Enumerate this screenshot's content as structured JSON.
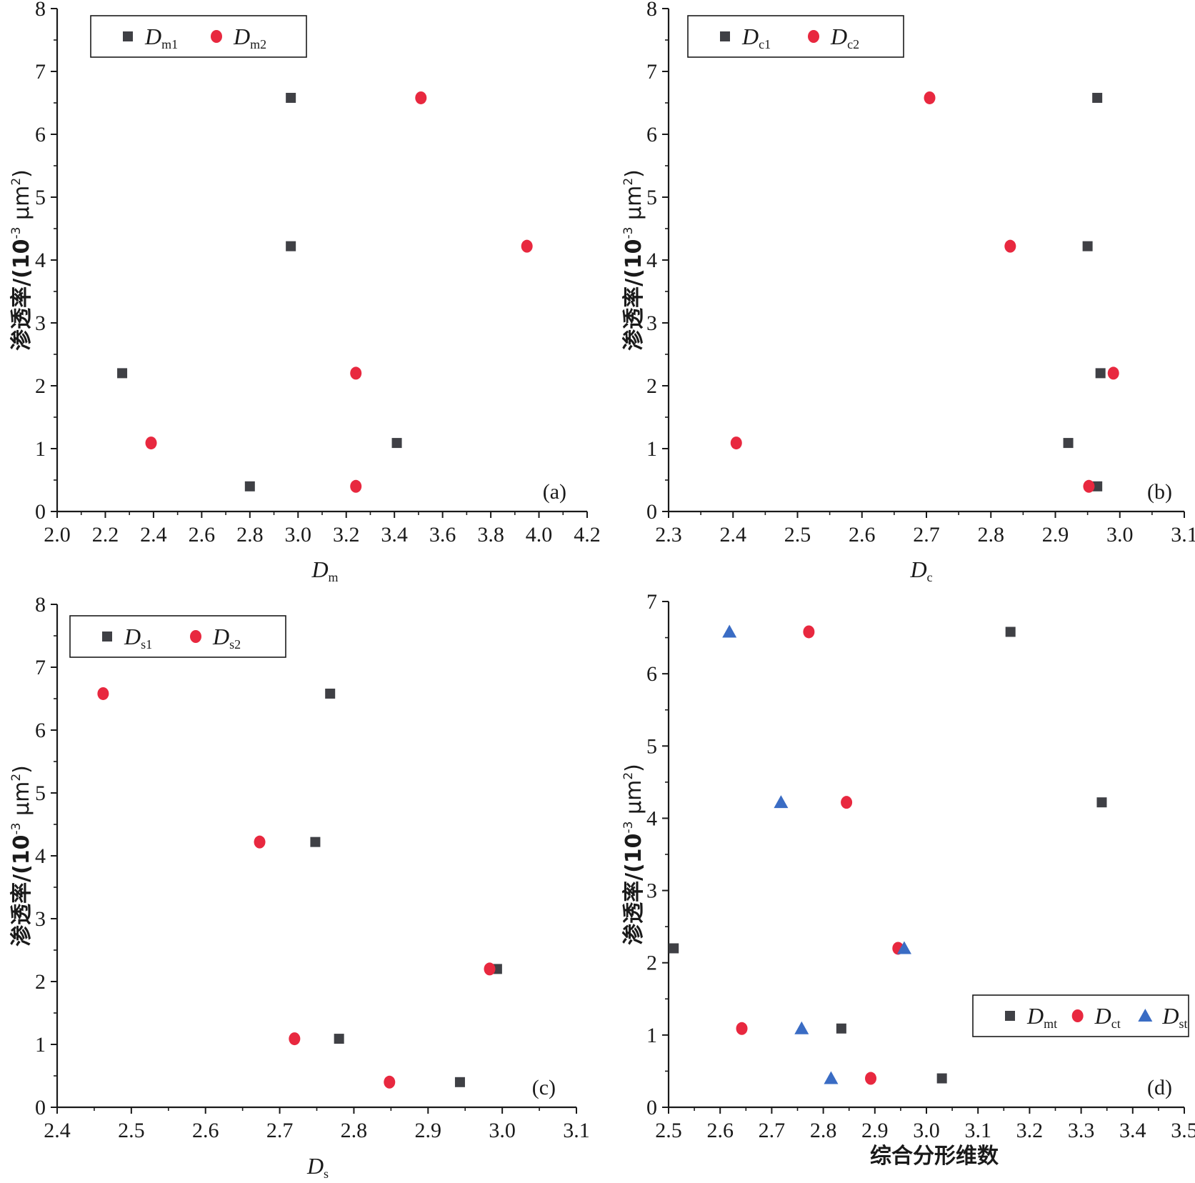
{
  "colors": {
    "square": "#3f4045",
    "circle": "#e8283f",
    "triangle": "#3a6cc4",
    "axis": "#1a1a1a"
  },
  "chart_data": [
    {
      "type": "scatter",
      "panel_label": "(a)",
      "xlabel": "D",
      "xlabel_sub": "m",
      "ylabel": "渗透率/(10",
      "ylabel_sup1": "-3",
      "ylabel_mid": " μm",
      "ylabel_sup2": "2",
      "ylabel_end": ")",
      "xlim": [
        2.0,
        4.2
      ],
      "ylim": [
        0,
        8
      ],
      "xticks": [
        "2.0",
        "2.2",
        "2.4",
        "2.6",
        "2.8",
        "3.0",
        "3.2",
        "3.4",
        "3.6",
        "3.8",
        "4.0",
        "4.2"
      ],
      "yticks": [
        "0",
        "1",
        "2",
        "3",
        "4",
        "5",
        "6",
        "7",
        "8"
      ],
      "legend_placement": "top-left",
      "series": [
        {
          "name": "D",
          "name_sub": "m1",
          "marker": "square",
          "x": [
            2.27,
            2.8,
            2.97,
            2.97,
            3.41
          ],
          "y": [
            2.2,
            0.4,
            6.58,
            4.22,
            1.09
          ]
        },
        {
          "name": "D",
          "name_sub": "m2",
          "marker": "circle",
          "x": [
            2.39,
            3.24,
            3.24,
            3.51,
            3.95
          ],
          "y": [
            1.09,
            2.2,
            0.4,
            6.58,
            4.22
          ]
        }
      ]
    },
    {
      "type": "scatter",
      "panel_label": "(b)",
      "xlabel": "D",
      "xlabel_sub": "c",
      "ylabel": "渗透率/(10",
      "ylabel_sup1": "-3",
      "ylabel_mid": " μm",
      "ylabel_sup2": "2",
      "ylabel_end": ")",
      "xlim": [
        2.3,
        3.1
      ],
      "ylim": [
        0,
        8
      ],
      "xticks": [
        "2.3",
        "2.4",
        "2.5",
        "2.6",
        "2.7",
        "2.8",
        "2.9",
        "3.0",
        "3.1"
      ],
      "yticks": [
        "0",
        "1",
        "2",
        "3",
        "4",
        "5",
        "6",
        "7",
        "8"
      ],
      "legend_placement": "top-left",
      "series": [
        {
          "name": "D",
          "name_sub": "c1",
          "marker": "square",
          "x": [
            2.92,
            2.95,
            2.965,
            2.965,
            2.97
          ],
          "y": [
            1.09,
            4.22,
            6.58,
            0.4,
            2.2
          ]
        },
        {
          "name": "D",
          "name_sub": "c2",
          "marker": "circle",
          "x": [
            2.405,
            2.705,
            2.83,
            2.952,
            2.99
          ],
          "y": [
            1.09,
            6.58,
            4.22,
            0.4,
            2.2
          ]
        }
      ]
    },
    {
      "type": "scatter",
      "panel_label": "(c)",
      "xlabel": "D",
      "xlabel_sub": "s",
      "ylabel": "渗透率/(10",
      "ylabel_sup1": "-3",
      "ylabel_mid": " μm",
      "ylabel_sup2": "2",
      "ylabel_end": ")",
      "xlim": [
        2.4,
        3.1
      ],
      "ylim": [
        0,
        8
      ],
      "xticks": [
        "2.4",
        "2.5",
        "2.6",
        "2.7",
        "2.8",
        "2.9",
        "3.0",
        "3.1"
      ],
      "yticks": [
        "0",
        "1",
        "2",
        "3",
        "4",
        "5",
        "6",
        "7",
        "8"
      ],
      "legend_placement": "top-left",
      "series": [
        {
          "name": "D",
          "name_sub": "s1",
          "marker": "square",
          "x": [
            2.748,
            2.768,
            2.78,
            2.943,
            2.993
          ],
          "y": [
            4.22,
            6.58,
            1.09,
            0.4,
            2.2
          ]
        },
        {
          "name": "D",
          "name_sub": "s2",
          "marker": "circle",
          "x": [
            2.462,
            2.673,
            2.72,
            2.848,
            2.983
          ],
          "y": [
            6.58,
            4.22,
            1.09,
            0.4,
            2.2
          ]
        }
      ]
    },
    {
      "type": "scatter",
      "panel_label": "(d)",
      "xlabel": "综合分形维数",
      "ylabel": "渗透率/(10",
      "ylabel_sup1": "-3",
      "ylabel_mid": " μm",
      "ylabel_sup2": "2",
      "ylabel_end": ")",
      "xlim": [
        2.5,
        3.5
      ],
      "ylim": [
        0,
        7
      ],
      "xticks": [
        "2.5",
        "2.6",
        "2.7",
        "2.8",
        "2.9",
        "3.0",
        "3.1",
        "3.2",
        "3.3",
        "3.4",
        "3.5"
      ],
      "yticks": [
        "0",
        "1",
        "2",
        "3",
        "4",
        "5",
        "6",
        "7"
      ],
      "legend_placement": "bottom-right",
      "series": [
        {
          "name": "D",
          "name_sub": "mt",
          "marker": "square",
          "x": [
            2.51,
            2.835,
            3.03,
            3.163,
            3.34
          ],
          "y": [
            2.2,
            1.09,
            0.4,
            6.58,
            4.22
          ]
        },
        {
          "name": "D",
          "name_sub": "ct",
          "marker": "circle",
          "x": [
            2.642,
            2.772,
            2.845,
            2.892,
            2.945
          ],
          "y": [
            1.09,
            6.58,
            4.22,
            0.4,
            2.2
          ]
        },
        {
          "name": "D",
          "name_sub": "st",
          "marker": "triangle",
          "x": [
            2.618,
            2.718,
            2.758,
            2.815,
            2.957
          ],
          "y": [
            6.58,
            4.22,
            1.09,
            0.4,
            2.2
          ]
        }
      ]
    }
  ]
}
